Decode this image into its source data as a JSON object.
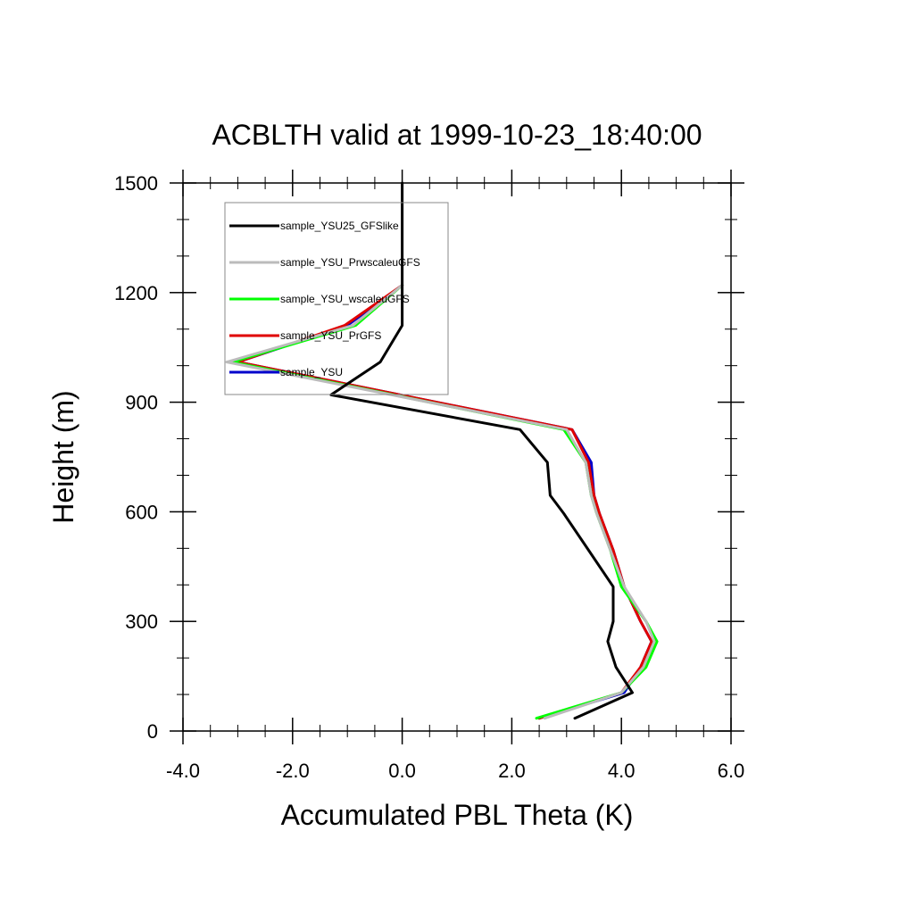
{
  "chart_data": {
    "type": "line",
    "title": "ACBLTH valid at 1999-10-23_18:40:00",
    "xlabel": "Accumulated PBL Theta (K)",
    "ylabel": "Height (m)",
    "xlim": [
      -4,
      6
    ],
    "ylim": [
      0,
      1500
    ],
    "xticks": [
      -4,
      -2,
      0,
      2,
      4,
      6
    ],
    "xtick_labels": [
      "-4.0",
      "-2.0",
      "0.0",
      "2.0",
      "4.0",
      "6.0"
    ],
    "yticks": [
      0,
      300,
      600,
      900,
      1200,
      1500
    ],
    "ytick_labels": [
      "0",
      "300",
      "600",
      "900",
      "1200",
      "1500"
    ],
    "grid": false,
    "legend_position": "top-left",
    "series": [
      {
        "name": "sample_YSU25_GFSlike",
        "color": "#000000",
        "points": [
          [
            3.15,
            35
          ],
          [
            4.2,
            105
          ],
          [
            3.9,
            175
          ],
          [
            3.75,
            245
          ],
          [
            3.85,
            300
          ],
          [
            3.85,
            395
          ],
          [
            3.4,
            495
          ],
          [
            2.95,
            595
          ],
          [
            2.7,
            645
          ],
          [
            2.65,
            735
          ],
          [
            2.15,
            825
          ],
          [
            -1.3,
            920
          ],
          [
            -0.4,
            1010
          ],
          [
            0.0,
            1110
          ],
          [
            0.0,
            1220
          ],
          [
            0.0,
            1500
          ]
        ]
      },
      {
        "name": "sample_YSU_PrwscaleuGFS",
        "color": "#bbbbbb",
        "points": [
          [
            2.6,
            35
          ],
          [
            4.0,
            105
          ],
          [
            4.4,
            175
          ],
          [
            4.6,
            245
          ],
          [
            4.45,
            300
          ],
          [
            4.05,
            395
          ],
          [
            3.8,
            495
          ],
          [
            3.55,
            595
          ],
          [
            3.45,
            645
          ],
          [
            3.35,
            735
          ],
          [
            3.0,
            825
          ],
          [
            -3.2,
            1010
          ],
          [
            -0.9,
            1110
          ],
          [
            0.0,
            1220
          ]
        ]
      },
      {
        "name": "sample_YSU_wscaleuGFS",
        "color": "#00ff00",
        "points": [
          [
            2.45,
            35
          ],
          [
            4.0,
            105
          ],
          [
            4.45,
            175
          ],
          [
            4.65,
            245
          ],
          [
            4.45,
            300
          ],
          [
            4.0,
            395
          ],
          [
            3.8,
            495
          ],
          [
            3.55,
            595
          ],
          [
            3.45,
            645
          ],
          [
            3.35,
            735
          ],
          [
            2.95,
            825
          ],
          [
            -3.1,
            1010
          ],
          [
            -0.85,
            1110
          ],
          [
            0.0,
            1220
          ]
        ]
      },
      {
        "name": "sample_YSU_PrGFS",
        "color": "#e00000",
        "points": [
          [
            2.5,
            35
          ],
          [
            4.0,
            105
          ],
          [
            4.35,
            175
          ],
          [
            4.55,
            245
          ],
          [
            4.35,
            300
          ],
          [
            4.05,
            395
          ],
          [
            3.85,
            495
          ],
          [
            3.6,
            595
          ],
          [
            3.5,
            645
          ],
          [
            3.4,
            735
          ],
          [
            3.1,
            825
          ],
          [
            -3.0,
            1010
          ],
          [
            -1.05,
            1110
          ],
          [
            0.0,
            1220
          ]
        ]
      },
      {
        "name": "sample_YSU",
        "color": "#0000cc",
        "points": [
          [
            2.5,
            35
          ],
          [
            4.05,
            105
          ],
          [
            4.35,
            175
          ],
          [
            4.55,
            245
          ],
          [
            4.35,
            300
          ],
          [
            4.05,
            395
          ],
          [
            3.85,
            495
          ],
          [
            3.6,
            595
          ],
          [
            3.5,
            645
          ],
          [
            3.45,
            735
          ],
          [
            3.1,
            825
          ],
          [
            -3.0,
            1010
          ],
          [
            -1.0,
            1110
          ],
          [
            0.0,
            1220
          ]
        ]
      }
    ]
  }
}
